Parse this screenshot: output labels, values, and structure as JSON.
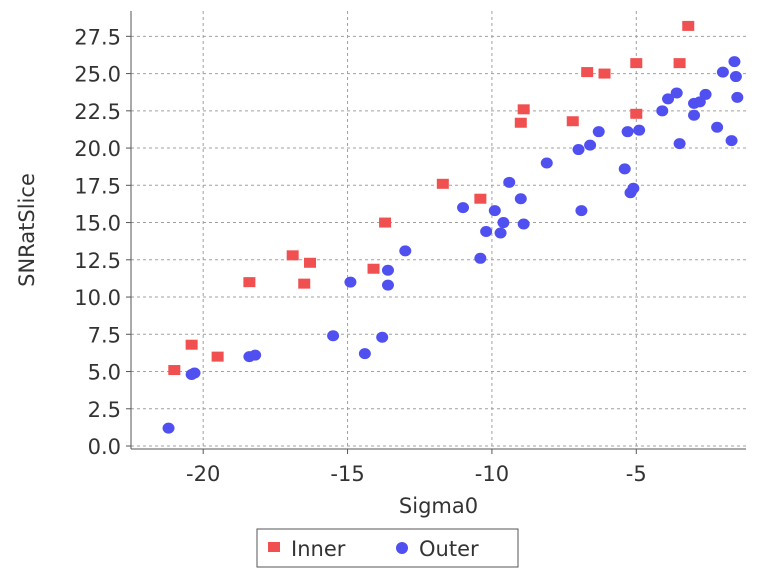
{
  "chart_data": {
    "type": "scatter",
    "title": "",
    "xlabel": "Sigma0",
    "ylabel": "SNRatSlice",
    "xlim": [
      -22.5,
      -1.2
    ],
    "ylim": [
      -0.2,
      29.2
    ],
    "x_ticks": [
      -20,
      -15,
      -10,
      -5
    ],
    "x_tick_labels": [
      "-20",
      "-15",
      "-10",
      "-5"
    ],
    "y_ticks": [
      0.0,
      2.5,
      5.0,
      7.5,
      10.0,
      12.5,
      15.0,
      17.5,
      20.0,
      22.5,
      25.0,
      27.5
    ],
    "y_tick_labels": [
      "0.0",
      "2.5",
      "5.0",
      "7.5",
      "10.0",
      "12.5",
      "15.0",
      "17.5",
      "20.0",
      "22.5",
      "25.0",
      "27.5"
    ],
    "grid": true,
    "legend_position": "bottom",
    "series": [
      {
        "name": "Inner",
        "marker": "square",
        "color": "#f05050",
        "points": [
          [
            -21.0,
            5.1
          ],
          [
            -20.4,
            6.8
          ],
          [
            -19.5,
            6.0
          ],
          [
            -18.4,
            11.0
          ],
          [
            -16.9,
            12.8
          ],
          [
            -16.5,
            10.9
          ],
          [
            -16.3,
            12.3
          ],
          [
            -14.1,
            11.9
          ],
          [
            -13.7,
            15.0
          ],
          [
            -11.7,
            17.6
          ],
          [
            -10.4,
            16.6
          ],
          [
            -9.0,
            21.7
          ],
          [
            -8.9,
            22.6
          ],
          [
            -7.2,
            21.8
          ],
          [
            -6.7,
            25.1
          ],
          [
            -6.1,
            25.0
          ],
          [
            -5.0,
            25.7
          ],
          [
            -5.0,
            22.3
          ],
          [
            -3.5,
            25.7
          ],
          [
            -3.2,
            28.2
          ]
        ]
      },
      {
        "name": "Outer",
        "marker": "circle",
        "color": "#5050f0",
        "points": [
          [
            -21.2,
            1.2
          ],
          [
            -20.4,
            4.8
          ],
          [
            -20.3,
            4.9
          ],
          [
            -18.4,
            6.0
          ],
          [
            -18.2,
            6.1
          ],
          [
            -15.5,
            7.4
          ],
          [
            -14.9,
            11.0
          ],
          [
            -14.4,
            6.2
          ],
          [
            -13.8,
            7.3
          ],
          [
            -13.6,
            10.8
          ],
          [
            -13.6,
            11.8
          ],
          [
            -13.0,
            13.1
          ],
          [
            -11.0,
            16.0
          ],
          [
            -10.4,
            12.6
          ],
          [
            -10.2,
            14.4
          ],
          [
            -9.9,
            15.8
          ],
          [
            -9.7,
            14.3
          ],
          [
            -9.6,
            15.0
          ],
          [
            -9.4,
            17.7
          ],
          [
            -9.0,
            16.6
          ],
          [
            -8.9,
            14.9
          ],
          [
            -8.1,
            19.0
          ],
          [
            -7.0,
            19.9
          ],
          [
            -6.9,
            15.8
          ],
          [
            -6.6,
            20.2
          ],
          [
            -6.3,
            21.1
          ],
          [
            -5.4,
            18.6
          ],
          [
            -5.3,
            21.1
          ],
          [
            -5.2,
            17.0
          ],
          [
            -5.1,
            17.3
          ],
          [
            -4.9,
            21.2
          ],
          [
            -4.1,
            22.5
          ],
          [
            -3.9,
            23.3
          ],
          [
            -3.6,
            23.7
          ],
          [
            -3.5,
            20.3
          ],
          [
            -3.0,
            22.2
          ],
          [
            -3.0,
            23.0
          ],
          [
            -2.8,
            23.1
          ],
          [
            -2.6,
            23.6
          ],
          [
            -2.2,
            21.4
          ],
          [
            -2.0,
            25.1
          ],
          [
            -1.7,
            20.5
          ],
          [
            -1.6,
            25.8
          ],
          [
            -1.55,
            24.8
          ],
          [
            -1.5,
            23.4
          ]
        ]
      }
    ]
  }
}
